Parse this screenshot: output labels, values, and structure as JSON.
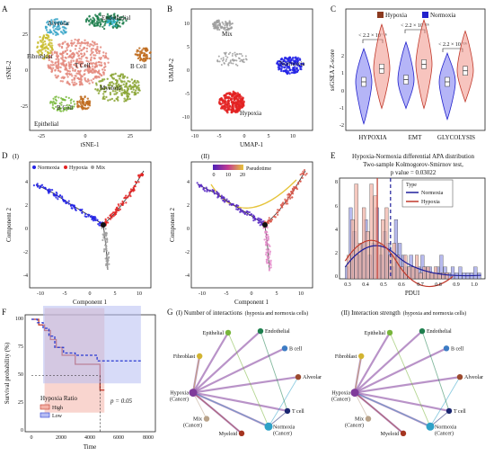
{
  "figure": {
    "panels": {
      "A": {
        "letter": "A",
        "xlabel": "tSNE-1",
        "ylabel": "tSNE-2",
        "xticks": [
          "-25",
          "0",
          "25"
        ],
        "yticks": [
          "25",
          "0",
          "-25"
        ],
        "clusters": [
          {
            "name": "Alveolar",
            "color": "#3ca7c9"
          },
          {
            "name": "Endothelial",
            "color": "#1e7f4e"
          },
          {
            "name": "Fibroblast",
            "color": "#c9bd2f"
          },
          {
            "name": "T Cell",
            "color": "#e48a7e"
          },
          {
            "name": "B Cell",
            "color": "#c06c1f"
          },
          {
            "name": "Myeloid",
            "color": "#8aa534"
          },
          {
            "name": "B Cell",
            "color": "#c06c1f"
          },
          {
            "name": "Epithelial",
            "color": "#77b93a"
          }
        ]
      },
      "B": {
        "letter": "B",
        "xlabel": "UMAP-1",
        "ylabel": "UMAP-2",
        "xticks": [
          "-10",
          "-5",
          "0",
          "5",
          "10"
        ],
        "yticks": [
          "10",
          "5",
          "0",
          "-5",
          "-10"
        ],
        "groups": [
          {
            "name": "Mix",
            "color": "#9e9e9e"
          },
          {
            "name": "Normoxia",
            "color": "#2323e6"
          },
          {
            "name": "Hypoxia",
            "color": "#e32222"
          }
        ]
      },
      "C": {
        "letter": "C",
        "ylabel": "ssGSEA Z-score",
        "yticks": [
          "2",
          "1",
          "0",
          "-1",
          "-2"
        ],
        "categories": [
          "HYPOXIA",
          "EMT",
          "GLYCOLYSIS"
        ],
        "legend": [
          {
            "name": "Hypoxia",
            "color": "#8b3a1f"
          },
          {
            "name": "Normoxia",
            "color": "#2222cc"
          }
        ],
        "annotations": [
          "< 2.2 × 10⁻¹⁶",
          "< 2.2 × 10⁻¹⁶",
          "< 2.2 × 10⁻¹⁶"
        ]
      },
      "D": {
        "letter": "D",
        "sub1": "(I)",
        "sub2": "(II)",
        "xlabel": "Component 1",
        "ylabel": "Component 2",
        "xticks": [
          "-10",
          "-5",
          "0",
          "5",
          "10"
        ],
        "yticks": [
          "4",
          "2",
          "0",
          "-2",
          "-4"
        ],
        "legend1": [
          "Normoxia",
          "Hypoxia",
          "Mix"
        ],
        "legend2_title": "Pseudotime",
        "legend2_ticks": [
          "0",
          "10",
          "20"
        ]
      },
      "E": {
        "letter": "E",
        "title_lines": [
          "Hypoxia-Normoxia differential APA distribution",
          "Two-sample Kolmogorov-Smirnov test,",
          "p value = 0.03022"
        ],
        "xlabel": "PDUI",
        "xticks": [
          "0.3",
          "0.4",
          "0.5",
          "0.6",
          "0.7",
          "0.8",
          "0.9",
          "1.0"
        ],
        "yticks": [
          "8",
          "6",
          "4",
          "2",
          "0"
        ],
        "legend_title": "Type",
        "legend": [
          {
            "name": "Normoxia",
            "color": "#1f1f9c"
          },
          {
            "name": "Hypoxia",
            "color": "#c0392b"
          }
        ]
      },
      "F": {
        "letter": "F",
        "xlabel": "Time",
        "ylabel": "Survival probability (%)",
        "xticks": [
          "0",
          "2000",
          "4000",
          "6000",
          "8000"
        ],
        "yticks": [
          "100",
          "75",
          "50",
          "25",
          "0"
        ],
        "legend_title": "Hypoxia Ratio",
        "legend": [
          {
            "name": "High",
            "color": "#c0392b"
          },
          {
            "name": "Low",
            "color": "#2a3bd1"
          }
        ],
        "pvalue": "p = 0.05"
      },
      "G": {
        "letter": "G",
        "sub1_prefix": "(I) Number of interactions",
        "sub1_suffix": "(hypoxia and normoxia cells)",
        "sub2_prefix": "(II) Interaction strength",
        "sub2_suffix": "(hypoxia and normoxia cells)",
        "nodes": [
          {
            "name": "Epithelial",
            "color": "#78b53b"
          },
          {
            "name": "Endothelial",
            "color": "#1e7f4e"
          },
          {
            "name": "Fibroblast",
            "color": "#d2b431"
          },
          {
            "name": "B cell",
            "color": "#3c7cc4"
          },
          {
            "name": "Alveolar",
            "color": "#9c4a2e"
          },
          {
            "name": "Hypoxia (Cancer)",
            "color": "#7f3b9b"
          },
          {
            "name": "T cell",
            "color": "#1a2570"
          },
          {
            "name": "Mix (Cancer)",
            "color": "#b9a38a"
          },
          {
            "name": "Myeloid",
            "color": "#a53520"
          },
          {
            "name": "Normoxia (Cancer)",
            "color": "#2ea1c7"
          }
        ]
      }
    }
  },
  "chart_data": [
    {
      "type": "scatter",
      "panel": "A",
      "xlabel": "tSNE-1",
      "ylabel": "tSNE-2",
      "xlim": [
        -40,
        40
      ],
      "ylim": [
        -40,
        40
      ],
      "series": [
        {
          "name": "T Cell",
          "x": -8,
          "y": 5
        },
        {
          "name": "Myeloid",
          "x": 18,
          "y": -12
        },
        {
          "name": "Endothelial",
          "x": 10,
          "y": 32
        },
        {
          "name": "Alveolar",
          "x": -22,
          "y": 28
        },
        {
          "name": "B Cell",
          "x": 35,
          "y": 10
        },
        {
          "name": "B Cell",
          "x": -5,
          "y": -22
        },
        {
          "name": "Fibroblast",
          "x": -30,
          "y": 15
        }
      ]
    },
    {
      "type": "scatter",
      "panel": "B",
      "xlabel": "UMAP-1",
      "ylabel": "UMAP-2",
      "xlim": [
        -12,
        15
      ],
      "ylim": [
        -13,
        13
      ],
      "series": [
        {
          "name": "Mix",
          "x": -5,
          "y": 8
        },
        {
          "name": "Normoxia",
          "x": 10,
          "y": 1
        },
        {
          "name": "Hypoxia",
          "x": -3,
          "y": -7
        }
      ]
    },
    {
      "type": "violin",
      "panel": "C",
      "categories": [
        "HYPOXIA",
        "EMT",
        "GLYCOLYSIS"
      ],
      "series": [
        {
          "name": "Normoxia",
          "median": [
            -0.3,
            -0.2,
            -0.3
          ],
          "range": [
            [
              -2.2,
              1.2
            ],
            [
              -1.5,
              1.5
            ],
            [
              -2.0,
              1.0
            ]
          ]
        },
        {
          "name": "Hypoxia",
          "median": [
            0.3,
            0.5,
            0.2
          ],
          "range": [
            [
              -1.5,
              2.3
            ],
            [
              -1.5,
              2.5
            ],
            [
              -1.2,
              2.0
            ]
          ]
        }
      ],
      "ylim": [
        -2.5,
        3
      ]
    },
    {
      "type": "bar",
      "panel": "E",
      "xlabel": "PDUI",
      "xlim": [
        0.25,
        1.02
      ],
      "ylim": [
        0,
        8.5
      ],
      "series": [
        {
          "name": "Normoxia",
          "x": [
            0.28,
            0.3,
            0.32,
            0.34,
            0.36,
            0.38,
            0.4,
            0.42,
            0.44,
            0.46,
            0.48,
            0.5,
            0.52,
            0.54,
            0.56,
            0.58,
            0.6,
            0.62,
            0.64,
            0.66,
            0.68,
            0.7,
            0.72,
            0.74,
            0.76,
            0.78,
            0.8,
            0.82,
            0.84,
            0.86,
            0.88,
            0.9,
            0.92,
            0.94,
            0.96,
            0.98
          ],
          "values": [
            1,
            6,
            4,
            2,
            3,
            5,
            2,
            3,
            6,
            2,
            4,
            3,
            1,
            5,
            3,
            2,
            1,
            2,
            1,
            1,
            2,
            1,
            1,
            0.5,
            1,
            2,
            1,
            0.5,
            1,
            0.5,
            1,
            0.5,
            0.5,
            0.5,
            1,
            0.5
          ]
        },
        {
          "name": "Hypoxia",
          "x": [
            0.29,
            0.31,
            0.33,
            0.35,
            0.37,
            0.39,
            0.41,
            0.43,
            0.45,
            0.47,
            0.49,
            0.51,
            0.53,
            0.55,
            0.57,
            0.59,
            0.61,
            0.63,
            0.65,
            0.67,
            0.69,
            0.71,
            0.73,
            0.75,
            0.77,
            0.79,
            0.81
          ],
          "values": [
            2,
            5,
            8,
            3,
            6,
            4,
            8,
            7,
            3,
            5,
            6,
            2,
            3,
            2,
            1,
            2,
            1,
            1,
            2,
            0.5,
            1,
            1,
            0.5,
            1,
            0.5,
            0.5,
            0.5
          ]
        }
      ],
      "vlines": [
        {
          "series": "Hypoxia",
          "x": 0.45
        },
        {
          "series": "Normoxia",
          "x": 0.52
        }
      ]
    },
    {
      "type": "line",
      "panel": "F",
      "xlabel": "Time",
      "ylabel": "Survival probability (%)",
      "xlim": [
        0,
        8000
      ],
      "ylim": [
        0,
        100
      ],
      "series": [
        {
          "name": "High",
          "x": [
            0,
            500,
            900,
            1300,
            1700,
            2100,
            3000,
            4500,
            4700,
            5000
          ],
          "values": [
            100,
            95,
            90,
            82,
            75,
            68,
            60,
            60,
            37,
            37
          ]
        },
        {
          "name": "Low",
          "x": [
            0,
            400,
            800,
            1200,
            1600,
            2200,
            3000,
            4500,
            5200,
            7500
          ],
          "values": [
            100,
            97,
            92,
            85,
            75,
            70,
            68,
            63,
            63,
            63
          ]
        }
      ]
    }
  ]
}
